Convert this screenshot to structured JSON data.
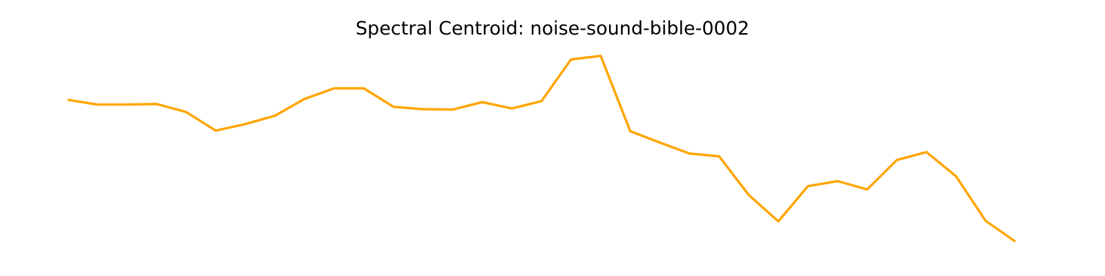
{
  "chart_data": {
    "type": "line",
    "title": "Spectral Centroid: noise-sound-bible-0002",
    "xlabel": "",
    "ylabel": "",
    "axes_visible": false,
    "grid": false,
    "legend": "none",
    "series": [
      {
        "color": "#FFA500",
        "values": [
          0.72,
          0.695,
          0.695,
          0.698,
          0.655,
          0.555,
          0.59,
          0.635,
          0.725,
          0.782,
          0.782,
          0.683,
          0.67,
          0.668,
          0.708,
          0.674,
          0.713,
          0.937,
          0.956,
          0.552,
          0.491,
          0.432,
          0.417,
          0.21,
          0.068,
          0.257,
          0.284,
          0.239,
          0.397,
          0.44,
          0.31,
          0.071,
          -0.04
        ]
      }
    ],
    "x": [
      0,
      1,
      2,
      3,
      4,
      5,
      6,
      7,
      8,
      9,
      10,
      11,
      12,
      13,
      14,
      15,
      16,
      17,
      18,
      19,
      20,
      21,
      22,
      23,
      24,
      25,
      26,
      27,
      28,
      29,
      30,
      31,
      32
    ],
    "xlim": [
      0,
      32
    ],
    "ylim": [
      -0.04,
      0.956
    ]
  }
}
